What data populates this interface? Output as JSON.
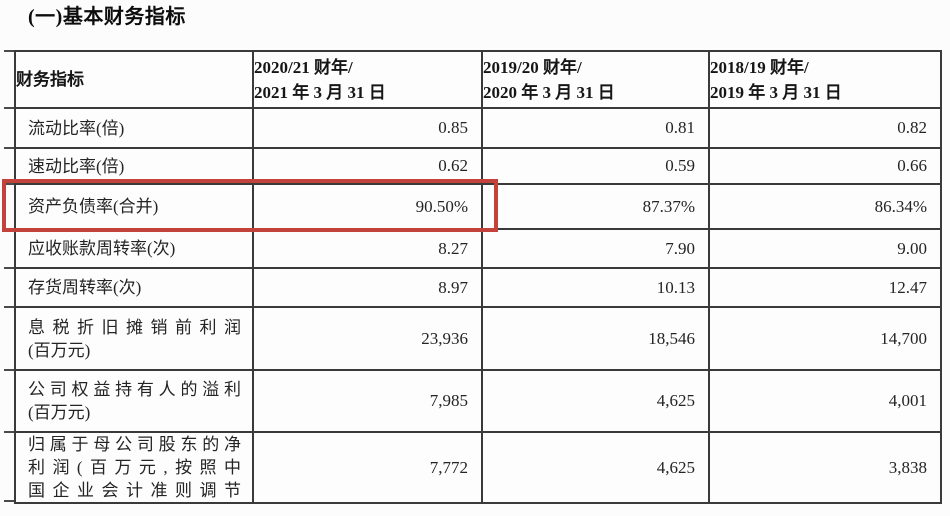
{
  "page": {
    "title": "(一)基本财务指标"
  },
  "table": {
    "header": {
      "label": "财务指标",
      "periods": [
        {
          "lines": [
            "2020/21 财年/",
            "2021 年 3 月 31 日"
          ]
        },
        {
          "lines": [
            "2019/20 财年/",
            "2020 年 3 月 31 日"
          ]
        },
        {
          "lines": [
            "2018/19 财年/",
            "2019 年 3 月 31 日"
          ]
        }
      ]
    },
    "rows": [
      {
        "label_lines": [
          "流动比率(倍)"
        ],
        "values": [
          "0.85",
          "0.81",
          "0.82"
        ]
      },
      {
        "label_lines": [
          "速动比率(倍)"
        ],
        "values": [
          "0.62",
          "0.59",
          "0.66"
        ]
      },
      {
        "label_lines": [
          "资产负债率(合并)"
        ],
        "values": [
          "90.50%",
          "87.37%",
          "86.34%"
        ],
        "highlighted": true
      },
      {
        "label_lines": [
          "应收账款周转率(次)"
        ],
        "values": [
          "8.27",
          "7.90",
          "9.00"
        ]
      },
      {
        "label_lines": [
          "存货周转率(次)"
        ],
        "values": [
          "8.97",
          "10.13",
          "12.47"
        ]
      },
      {
        "label_lines": [
          "息税折旧摊销前利润",
          "(百万元)"
        ],
        "values": [
          "23,936",
          "18,546",
          "14,700"
        ]
      },
      {
        "label_lines": [
          "公司权益持有人的溢利",
          "(百万元)"
        ],
        "values": [
          "7,985",
          "4,625",
          "4,001"
        ]
      },
      {
        "label_lines": [
          "归属于母公司股东的净",
          "利润(百万元,按照中",
          "国企业会计准则调节"
        ],
        "values": [
          "7,772",
          "4,625",
          "3,838"
        ],
        "justify_all_lines": true
      }
    ],
    "highlight_color": "#c4423c"
  }
}
